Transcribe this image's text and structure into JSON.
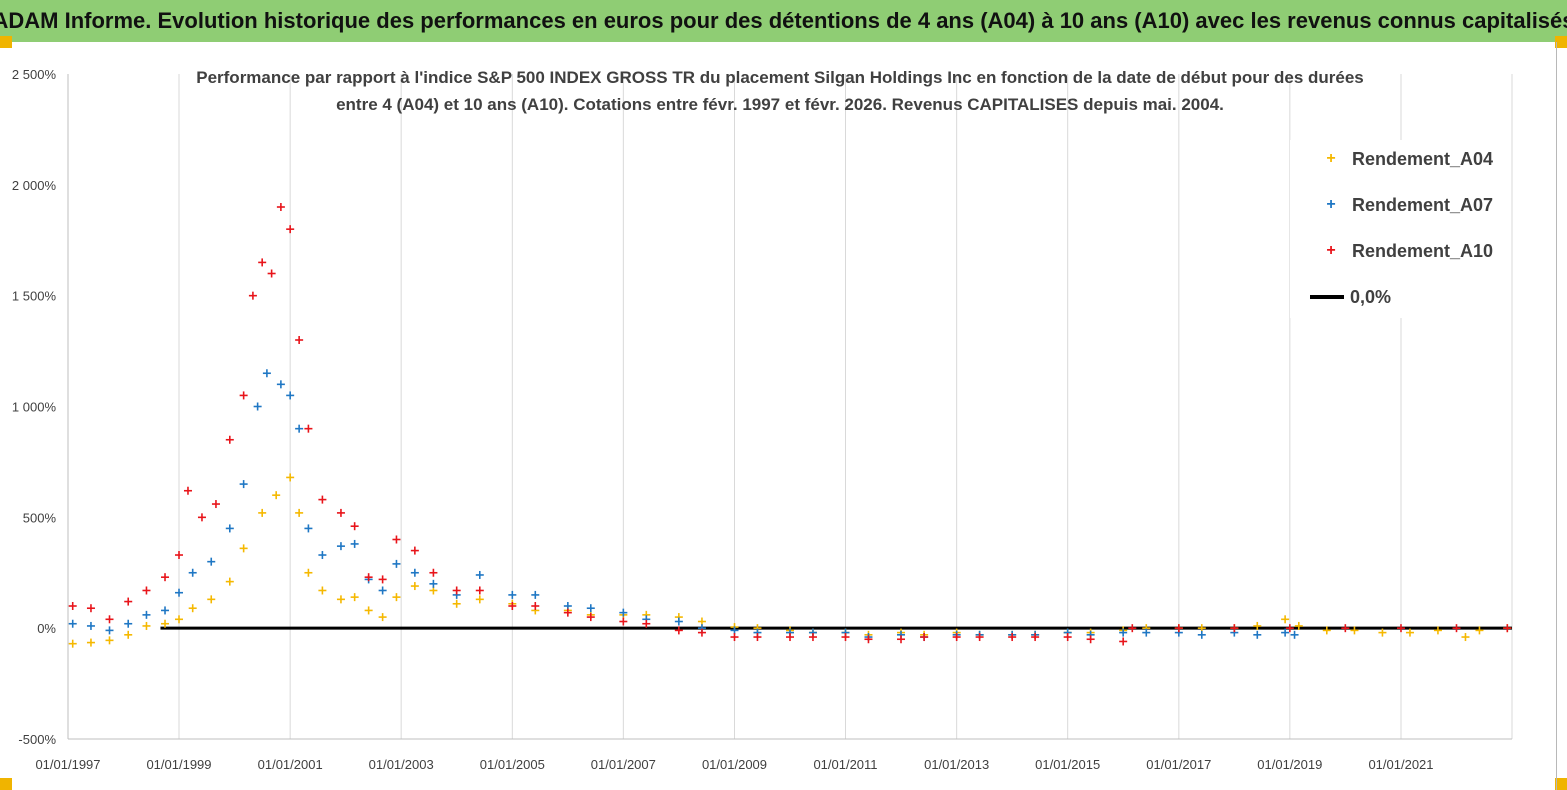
{
  "banner": {
    "title": "ADAM Informe. Evolution historique des performances en euros pour des détentions de 4 ans (A04) à 10 ans (A10) avec les revenus connus capitalisés"
  },
  "chart_data": {
    "type": "scatter",
    "title_line1": "Performance par rapport à l'indice S&P 500 INDEX GROSS TR  du placement Silgan Holdings Inc en fonction de la date de début pour des durées",
    "title_line2": "entre 4 (A04) et 10 ans (A10). Cotations entre févr. 1997 et févr. 2026. Revenus CAPITALISES depuis mai. 2004.",
    "xlabel": "",
    "ylabel": "",
    "xlim": [
      "1997-01-01",
      "2023-01-01"
    ],
    "ylim": [
      -500,
      2500
    ],
    "x_ticks": [
      "01/01/1997",
      "01/01/1999",
      "01/01/2001",
      "01/01/2003",
      "01/01/2005",
      "01/01/2007",
      "01/01/2009",
      "01/01/2011",
      "01/01/2013",
      "01/01/2015",
      "01/01/2017",
      "01/01/2019",
      "01/01/2021"
    ],
    "y_ticks": [
      "-500%",
      "0%",
      "500%",
      "1 000%",
      "1 500%",
      "2 000%",
      "2 500%"
    ],
    "grid": "vertical",
    "legend_position": "top-right",
    "reference_line": {
      "name": "0,0%",
      "value": 0,
      "color": "#000000"
    },
    "series": [
      {
        "name": "Rendement_A04",
        "color": "#f5b800",
        "marker": "+",
        "points": [
          [
            "1997-02-01",
            -70
          ],
          [
            "1997-06-01",
            -65
          ],
          [
            "1997-10-01",
            -55
          ],
          [
            "1998-02-01",
            -30
          ],
          [
            "1998-06-01",
            10
          ],
          [
            "1998-10-01",
            20
          ],
          [
            "1999-01-01",
            40
          ],
          [
            "1999-04-01",
            90
          ],
          [
            "1999-08-01",
            130
          ],
          [
            "1999-12-01",
            210
          ],
          [
            "2000-03-01",
            360
          ],
          [
            "2000-07-01",
            520
          ],
          [
            "2000-10-01",
            600
          ],
          [
            "2001-01-01",
            680
          ],
          [
            "2001-03-01",
            520
          ],
          [
            "2001-05-01",
            250
          ],
          [
            "2001-08-01",
            170
          ],
          [
            "2001-12-01",
            130
          ],
          [
            "2002-03-01",
            140
          ],
          [
            "2002-06-01",
            80
          ],
          [
            "2002-09-01",
            50
          ],
          [
            "2002-12-01",
            140
          ],
          [
            "2003-04-01",
            190
          ],
          [
            "2003-08-01",
            170
          ],
          [
            "2004-01-01",
            110
          ],
          [
            "2004-06-01",
            130
          ],
          [
            "2005-01-01",
            110
          ],
          [
            "2005-06-01",
            80
          ],
          [
            "2006-01-01",
            80
          ],
          [
            "2006-06-01",
            60
          ],
          [
            "2007-01-01",
            60
          ],
          [
            "2007-06-01",
            60
          ],
          [
            "2008-01-01",
            50
          ],
          [
            "2008-06-01",
            30
          ],
          [
            "2009-01-01",
            5
          ],
          [
            "2009-06-01",
            0
          ],
          [
            "2010-01-01",
            -10
          ],
          [
            "2010-06-01",
            -20
          ],
          [
            "2011-01-01",
            -20
          ],
          [
            "2011-06-01",
            -30
          ],
          [
            "2012-01-01",
            -20
          ],
          [
            "2012-06-01",
            -30
          ],
          [
            "2013-01-01",
            -20
          ],
          [
            "2013-06-01",
            -30
          ],
          [
            "2014-01-01",
            -30
          ],
          [
            "2014-06-01",
            -30
          ],
          [
            "2015-01-01",
            -20
          ],
          [
            "2015-06-01",
            -20
          ],
          [
            "2016-01-01",
            -10
          ],
          [
            "2016-06-01",
            0
          ],
          [
            "2017-01-01",
            0
          ],
          [
            "2017-06-01",
            0
          ],
          [
            "2018-01-01",
            0
          ],
          [
            "2018-06-01",
            10
          ],
          [
            "2018-12-01",
            40
          ],
          [
            "2019-03-01",
            10
          ],
          [
            "2019-09-01",
            -10
          ],
          [
            "2020-03-01",
            -10
          ],
          [
            "2020-09-01",
            -20
          ],
          [
            "2021-03-01",
            -20
          ],
          [
            "2021-09-01",
            -10
          ],
          [
            "2022-03-01",
            -40
          ],
          [
            "2022-06-01",
            -10
          ],
          [
            "2022-12-01",
            0
          ]
        ]
      },
      {
        "name": "Rendement_A07",
        "color": "#1f77c4",
        "marker": "+",
        "points": [
          [
            "1997-02-01",
            20
          ],
          [
            "1997-06-01",
            10
          ],
          [
            "1997-10-01",
            -10
          ],
          [
            "1998-02-01",
            20
          ],
          [
            "1998-06-01",
            60
          ],
          [
            "1998-10-01",
            80
          ],
          [
            "1999-01-01",
            160
          ],
          [
            "1999-04-01",
            250
          ],
          [
            "1999-08-01",
            300
          ],
          [
            "1999-12-01",
            450
          ],
          [
            "2000-03-01",
            650
          ],
          [
            "2000-06-01",
            1000
          ],
          [
            "2000-08-01",
            1150
          ],
          [
            "2000-11-01",
            1100
          ],
          [
            "2001-01-01",
            1050
          ],
          [
            "2001-03-01",
            900
          ],
          [
            "2001-05-01",
            450
          ],
          [
            "2001-08-01",
            330
          ],
          [
            "2001-12-01",
            370
          ],
          [
            "2002-03-01",
            380
          ],
          [
            "2002-06-01",
            220
          ],
          [
            "2002-09-01",
            170
          ],
          [
            "2002-12-01",
            290
          ],
          [
            "2003-04-01",
            250
          ],
          [
            "2003-08-01",
            200
          ],
          [
            "2004-01-01",
            150
          ],
          [
            "2004-06-01",
            240
          ],
          [
            "2005-01-01",
            150
          ],
          [
            "2005-06-01",
            150
          ],
          [
            "2006-01-01",
            100
          ],
          [
            "2006-06-01",
            90
          ],
          [
            "2007-01-01",
            70
          ],
          [
            "2007-06-01",
            40
          ],
          [
            "2008-01-01",
            30
          ],
          [
            "2008-06-01",
            0
          ],
          [
            "2009-01-01",
            -10
          ],
          [
            "2009-06-01",
            -20
          ],
          [
            "2010-01-01",
            -20
          ],
          [
            "2010-06-01",
            -20
          ],
          [
            "2011-01-01",
            -20
          ],
          [
            "2011-06-01",
            -40
          ],
          [
            "2012-01-01",
            -30
          ],
          [
            "2012-06-01",
            -40
          ],
          [
            "2013-01-01",
            -30
          ],
          [
            "2013-06-01",
            -30
          ],
          [
            "2014-01-01",
            -30
          ],
          [
            "2014-06-01",
            -30
          ],
          [
            "2015-01-01",
            -20
          ],
          [
            "2015-06-01",
            -30
          ],
          [
            "2016-01-01",
            -20
          ],
          [
            "2016-06-01",
            -20
          ],
          [
            "2017-01-01",
            -20
          ],
          [
            "2017-06-01",
            -30
          ],
          [
            "2018-01-01",
            -20
          ],
          [
            "2018-06-01",
            -30
          ],
          [
            "2018-12-01",
            -20
          ],
          [
            "2019-02-01",
            -30
          ]
        ]
      },
      {
        "name": "Rendement_A10",
        "color": "#e8141a",
        "marker": "+",
        "points": [
          [
            "1997-02-01",
            100
          ],
          [
            "1997-06-01",
            90
          ],
          [
            "1997-10-01",
            40
          ],
          [
            "1998-02-01",
            120
          ],
          [
            "1998-06-01",
            170
          ],
          [
            "1998-10-01",
            230
          ],
          [
            "1999-01-01",
            330
          ],
          [
            "1999-03-01",
            620
          ],
          [
            "1999-06-01",
            500
          ],
          [
            "1999-09-01",
            560
          ],
          [
            "1999-12-01",
            850
          ],
          [
            "2000-03-01",
            1050
          ],
          [
            "2000-05-01",
            1500
          ],
          [
            "2000-07-01",
            1650
          ],
          [
            "2000-09-01",
            1600
          ],
          [
            "2000-11-01",
            1900
          ],
          [
            "2001-01-01",
            1800
          ],
          [
            "2001-03-01",
            1300
          ],
          [
            "2001-05-01",
            900
          ],
          [
            "2001-08-01",
            580
          ],
          [
            "2001-12-01",
            520
          ],
          [
            "2002-03-01",
            460
          ],
          [
            "2002-06-01",
            230
          ],
          [
            "2002-09-01",
            220
          ],
          [
            "2002-12-01",
            400
          ],
          [
            "2003-04-01",
            350
          ],
          [
            "2003-08-01",
            250
          ],
          [
            "2004-01-01",
            170
          ],
          [
            "2004-06-01",
            170
          ],
          [
            "2005-01-01",
            100
          ],
          [
            "2005-06-01",
            100
          ],
          [
            "2006-01-01",
            70
          ],
          [
            "2006-06-01",
            50
          ],
          [
            "2007-01-01",
            30
          ],
          [
            "2007-06-01",
            20
          ],
          [
            "2008-01-01",
            -10
          ],
          [
            "2008-06-01",
            -20
          ],
          [
            "2009-01-01",
            -40
          ],
          [
            "2009-06-01",
            -40
          ],
          [
            "2010-01-01",
            -40
          ],
          [
            "2010-06-01",
            -40
          ],
          [
            "2011-01-01",
            -40
          ],
          [
            "2011-06-01",
            -50
          ],
          [
            "2012-01-01",
            -50
          ],
          [
            "2012-06-01",
            -40
          ],
          [
            "2013-01-01",
            -40
          ],
          [
            "2013-06-01",
            -40
          ],
          [
            "2014-01-01",
            -40
          ],
          [
            "2014-06-01",
            -40
          ],
          [
            "2015-01-01",
            -40
          ],
          [
            "2015-06-01",
            -50
          ],
          [
            "2016-01-01",
            -60
          ],
          [
            "2016-03-01",
            0
          ],
          [
            "2017-01-01",
            0
          ],
          [
            "2018-01-01",
            0
          ],
          [
            "2019-01-01",
            0
          ],
          [
            "2020-01-01",
            0
          ],
          [
            "2021-01-01",
            0
          ],
          [
            "2022-01-01",
            0
          ],
          [
            "2022-12-01",
            0
          ]
        ]
      }
    ]
  }
}
